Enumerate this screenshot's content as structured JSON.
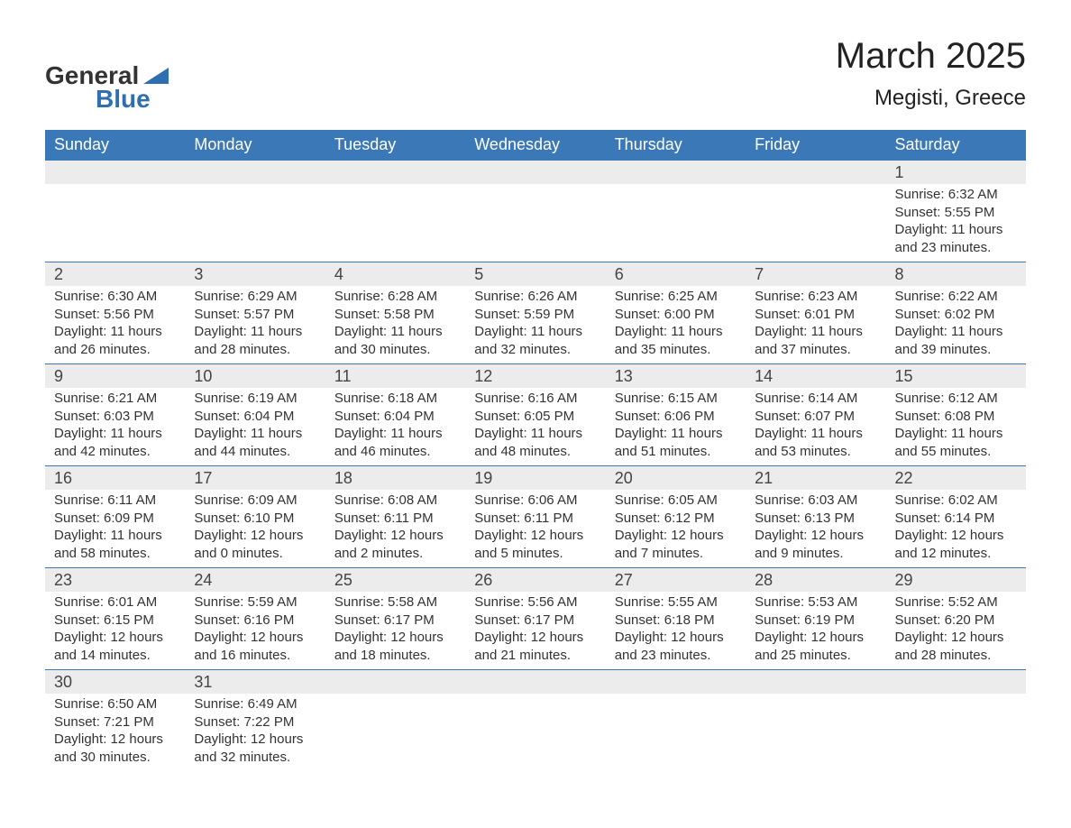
{
  "logo": {
    "text1": "General",
    "text2": "Blue",
    "brand_color": "#2f6fb0"
  },
  "title": {
    "month": "March 2025",
    "location": "Megisti, Greece"
  },
  "colors": {
    "header_bg": "#3b78b8",
    "header_text": "#ffffff",
    "daynum_bg": "#ececec",
    "border": "#3b78b8",
    "text": "#333333"
  },
  "day_headers": [
    "Sunday",
    "Monday",
    "Tuesday",
    "Wednesday",
    "Thursday",
    "Friday",
    "Saturday"
  ],
  "weeks": [
    [
      null,
      null,
      null,
      null,
      null,
      null,
      {
        "n": "1",
        "sr": "6:32 AM",
        "ss": "5:55 PM",
        "dl": "11 hours and 23 minutes."
      }
    ],
    [
      {
        "n": "2",
        "sr": "6:30 AM",
        "ss": "5:56 PM",
        "dl": "11 hours and 26 minutes."
      },
      {
        "n": "3",
        "sr": "6:29 AM",
        "ss": "5:57 PM",
        "dl": "11 hours and 28 minutes."
      },
      {
        "n": "4",
        "sr": "6:28 AM",
        "ss": "5:58 PM",
        "dl": "11 hours and 30 minutes."
      },
      {
        "n": "5",
        "sr": "6:26 AM",
        "ss": "5:59 PM",
        "dl": "11 hours and 32 minutes."
      },
      {
        "n": "6",
        "sr": "6:25 AM",
        "ss": "6:00 PM",
        "dl": "11 hours and 35 minutes."
      },
      {
        "n": "7",
        "sr": "6:23 AM",
        "ss": "6:01 PM",
        "dl": "11 hours and 37 minutes."
      },
      {
        "n": "8",
        "sr": "6:22 AM",
        "ss": "6:02 PM",
        "dl": "11 hours and 39 minutes."
      }
    ],
    [
      {
        "n": "9",
        "sr": "6:21 AM",
        "ss": "6:03 PM",
        "dl": "11 hours and 42 minutes."
      },
      {
        "n": "10",
        "sr": "6:19 AM",
        "ss": "6:04 PM",
        "dl": "11 hours and 44 minutes."
      },
      {
        "n": "11",
        "sr": "6:18 AM",
        "ss": "6:04 PM",
        "dl": "11 hours and 46 minutes."
      },
      {
        "n": "12",
        "sr": "6:16 AM",
        "ss": "6:05 PM",
        "dl": "11 hours and 48 minutes."
      },
      {
        "n": "13",
        "sr": "6:15 AM",
        "ss": "6:06 PM",
        "dl": "11 hours and 51 minutes."
      },
      {
        "n": "14",
        "sr": "6:14 AM",
        "ss": "6:07 PM",
        "dl": "11 hours and 53 minutes."
      },
      {
        "n": "15",
        "sr": "6:12 AM",
        "ss": "6:08 PM",
        "dl": "11 hours and 55 minutes."
      }
    ],
    [
      {
        "n": "16",
        "sr": "6:11 AM",
        "ss": "6:09 PM",
        "dl": "11 hours and 58 minutes."
      },
      {
        "n": "17",
        "sr": "6:09 AM",
        "ss": "6:10 PM",
        "dl": "12 hours and 0 minutes."
      },
      {
        "n": "18",
        "sr": "6:08 AM",
        "ss": "6:11 PM",
        "dl": "12 hours and 2 minutes."
      },
      {
        "n": "19",
        "sr": "6:06 AM",
        "ss": "6:11 PM",
        "dl": "12 hours and 5 minutes."
      },
      {
        "n": "20",
        "sr": "6:05 AM",
        "ss": "6:12 PM",
        "dl": "12 hours and 7 minutes."
      },
      {
        "n": "21",
        "sr": "6:03 AM",
        "ss": "6:13 PM",
        "dl": "12 hours and 9 minutes."
      },
      {
        "n": "22",
        "sr": "6:02 AM",
        "ss": "6:14 PM",
        "dl": "12 hours and 12 minutes."
      }
    ],
    [
      {
        "n": "23",
        "sr": "6:01 AM",
        "ss": "6:15 PM",
        "dl": "12 hours and 14 minutes."
      },
      {
        "n": "24",
        "sr": "5:59 AM",
        "ss": "6:16 PM",
        "dl": "12 hours and 16 minutes."
      },
      {
        "n": "25",
        "sr": "5:58 AM",
        "ss": "6:17 PM",
        "dl": "12 hours and 18 minutes."
      },
      {
        "n": "26",
        "sr": "5:56 AM",
        "ss": "6:17 PM",
        "dl": "12 hours and 21 minutes."
      },
      {
        "n": "27",
        "sr": "5:55 AM",
        "ss": "6:18 PM",
        "dl": "12 hours and 23 minutes."
      },
      {
        "n": "28",
        "sr": "5:53 AM",
        "ss": "6:19 PM",
        "dl": "12 hours and 25 minutes."
      },
      {
        "n": "29",
        "sr": "5:52 AM",
        "ss": "6:20 PM",
        "dl": "12 hours and 28 minutes."
      }
    ],
    [
      {
        "n": "30",
        "sr": "6:50 AM",
        "ss": "7:21 PM",
        "dl": "12 hours and 30 minutes."
      },
      {
        "n": "31",
        "sr": "6:49 AM",
        "ss": "7:22 PM",
        "dl": "12 hours and 32 minutes."
      },
      null,
      null,
      null,
      null,
      null
    ]
  ],
  "labels": {
    "sunrise": "Sunrise:",
    "sunset": "Sunset:",
    "daylight": "Daylight:"
  }
}
